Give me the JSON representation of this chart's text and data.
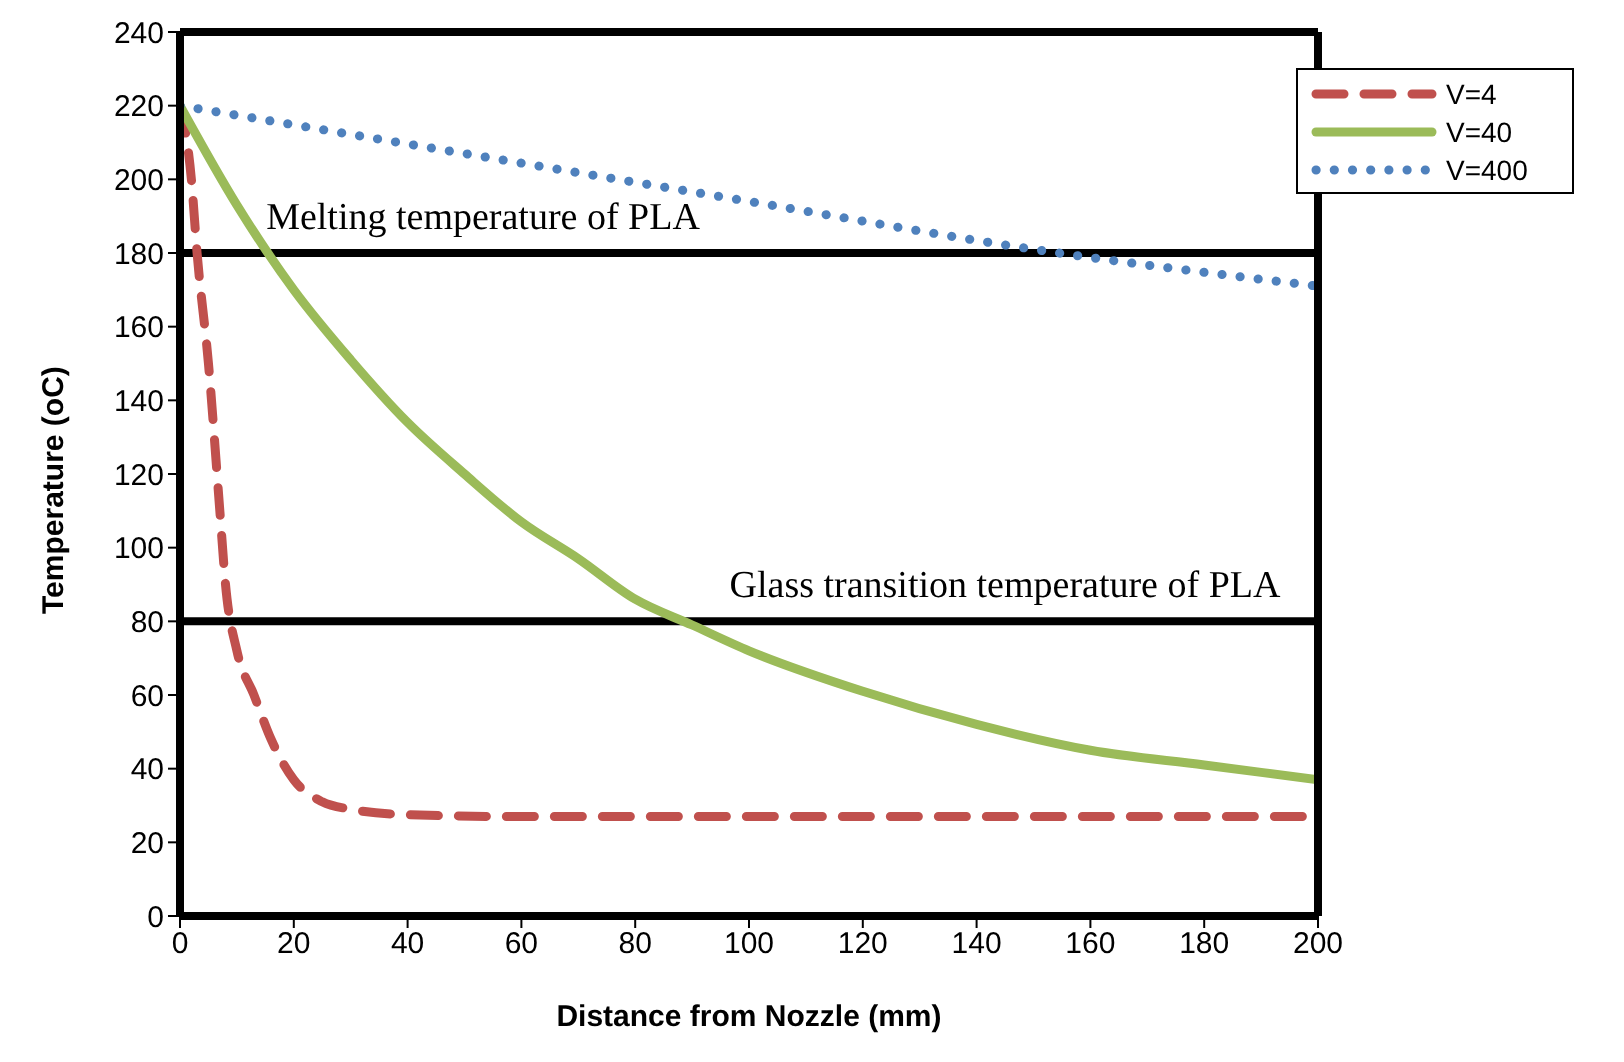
{
  "chart_data": {
    "type": "line",
    "xlabel": "Distance from Nozzle (mm)",
    "ylabel": "Temperature (oC)",
    "xlim": [
      0,
      200
    ],
    "xticks": [
      0,
      20,
      40,
      60,
      80,
      100,
      120,
      140,
      160,
      180,
      200
    ],
    "ylim": [
      0,
      240
    ],
    "yticks": [
      0,
      20,
      40,
      60,
      80,
      100,
      120,
      140,
      160,
      180,
      200,
      220,
      240
    ],
    "grid": false,
    "legend": "top right",
    "marker": "none",
    "series": [
      {
        "name": "V=4",
        "color": "#c0504d",
        "line_style": "dashed",
        "x": [
          0,
          2,
          3,
          5,
          7,
          8,
          10,
          13,
          16,
          20,
          25,
          30,
          40,
          60,
          100,
          150,
          200
        ],
        "values": [
          220,
          200,
          180,
          150,
          110,
          90,
          72,
          60,
          48,
          37,
          31,
          29,
          27.5,
          27,
          27,
          27,
          27
        ]
      },
      {
        "name": "V=40",
        "color": "#9bbb59",
        "line_style": "solid",
        "x": [
          0,
          10,
          20,
          30,
          40,
          50,
          60,
          70,
          80,
          90,
          100,
          120,
          140,
          160,
          180,
          200
        ],
        "values": [
          220,
          193,
          170,
          151,
          134,
          120,
          107,
          97,
          86,
          79,
          72,
          61,
          52,
          45,
          41,
          37
        ]
      },
      {
        "name": "V=400",
        "color": "#4f81bd",
        "line_style": "dotted",
        "x": [
          0,
          50,
          100,
          150,
          200
        ],
        "values": [
          220,
          207,
          194,
          181,
          171
        ]
      }
    ],
    "ref_lines": [
      {
        "axis": "y",
        "value": 180,
        "label": "Melting temperature of PLA",
        "color": "#000000"
      },
      {
        "axis": "y",
        "value": 80,
        "label": "Glass transition temperature of PLA",
        "color": "#000000"
      }
    ]
  }
}
